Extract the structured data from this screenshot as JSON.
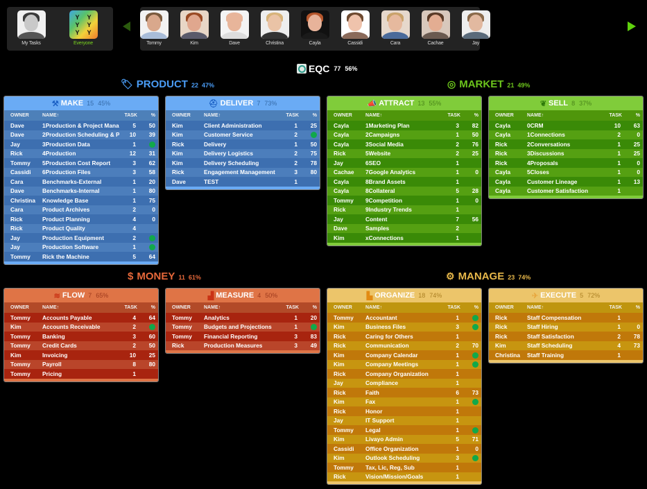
{
  "top_bar": {
    "self_users": [
      {
        "name": "My Tasks",
        "active": false,
        "skin": "#c9c9c9",
        "hair": "#3a3a3a",
        "bg": "#f0f0f0",
        "shirt": "#555"
      },
      {
        "name": "Everyone",
        "active": true,
        "icon": "everyone-icon"
      }
    ],
    "team_users": [
      {
        "name": "Tommy",
        "skin": "#d9a88c",
        "hair": "#7a5a3e",
        "bg": "#f2f2f2",
        "shirt": "#a8bcd8"
      },
      {
        "name": "Kim",
        "skin": "#e0a78e",
        "hair": "#9a4a24",
        "bg": "#e8d6c6",
        "shirt": "#5a5a6a"
      },
      {
        "name": "Dave",
        "skin": "#e8b59a",
        "hair": "#e8b59a",
        "bg": "#f4f4f4",
        "shirt": "#dddddd"
      },
      {
        "name": "Christina",
        "skin": "#eac3a6",
        "hair": "#d7b37a",
        "bg": "#eeeeee",
        "shirt": "#333"
      },
      {
        "name": "Cayla",
        "skin": "#e7b39a",
        "hair": "#b5562c",
        "bg": "#111111",
        "shirt": "#1a1a1a"
      },
      {
        "name": "Cassidi",
        "skin": "#efc3ac",
        "hair": "#6e4a30",
        "bg": "#ffffff",
        "shirt": "#8a6a5a"
      },
      {
        "name": "Cara",
        "skin": "#e6b99e",
        "hair": "#c9a26a",
        "bg": "#e6d8cc",
        "shirt": "#4a6a9a"
      },
      {
        "name": "Cachae",
        "skin": "#e3ad92",
        "hair": "#5a3a26",
        "bg": "#d8c8bc",
        "shirt": "#6a5a50"
      },
      {
        "name": "Jay",
        "skin": "#e2b9a0",
        "hair": "#8a6a4a",
        "bg": "#eeeeee",
        "shirt": "#5a6a7a"
      }
    ],
    "prev_arrow": "triangle-left-icon",
    "next_arrow": "triangle-right-icon"
  },
  "eqc": {
    "label": "EQC",
    "count": "77",
    "pct": "56%"
  },
  "sections": {
    "product": {
      "label": "PRODUCT",
      "count": "22",
      "pct": "47%",
      "color": "#4a9cf5",
      "icon": "🏷"
    },
    "market": {
      "label": "MARKET",
      "count": "21",
      "pct": "49%",
      "color": "#6cc41c",
      "icon": "🎯"
    },
    "money": {
      "label": "MONEY",
      "count": "11",
      "pct": "61%",
      "color": "#e6683a",
      "icon": "$"
    },
    "manage": {
      "label": "MANAGE",
      "count": "23",
      "pct": "74%",
      "color": "#e8b84a",
      "icon": "⚙"
    }
  },
  "columns": {
    "owner": "OWNER",
    "name": "NAME↑",
    "task": "TASK",
    "pct": "%"
  },
  "panels": {
    "make": {
      "label": "MAKE",
      "count": "15",
      "pct": "45%",
      "icon": "⚒",
      "rows": [
        [
          "Dave",
          "1Production & Project Management",
          "5",
          "50"
        ],
        [
          "Dave",
          "2Production Scheduling & Planning",
          "10",
          "39"
        ],
        [
          "Jay",
          "3Production Data",
          "1",
          "dot"
        ],
        [
          "Rick",
          "4Production",
          "12",
          "31"
        ],
        [
          "Tommy",
          "5Production Cost Report",
          "3",
          "62"
        ],
        [
          "Cassidi",
          "6Production Files",
          "3",
          "58"
        ],
        [
          "Cara",
          "Benchmarks-External",
          "1",
          "20"
        ],
        [
          "Dave",
          "Benchmarks-Internal",
          "1",
          "80"
        ],
        [
          "Christina",
          "Knowledge Base",
          "1",
          "75"
        ],
        [
          "Cara",
          "Product Archives",
          "2",
          "0"
        ],
        [
          "Rick",
          "Product Planning",
          "4",
          "0"
        ],
        [
          "Rick",
          "Product Quality",
          "4",
          ""
        ],
        [
          "Jay",
          "Production Equipment",
          "2",
          "dot"
        ],
        [
          "Jay",
          "Production Software",
          "1",
          "dot"
        ],
        [
          "Tommy",
          "Rick the Machine",
          "5",
          "64"
        ]
      ]
    },
    "deliver": {
      "label": "DELIVER",
      "count": "7",
      "pct": "73%",
      "icon": "🛡",
      "rows": [
        [
          "Kim",
          "Client Administration",
          "1",
          "25"
        ],
        [
          "Kim",
          "Customer Service",
          "2",
          "dot"
        ],
        [
          "Rick",
          "Delivery",
          "1",
          "50"
        ],
        [
          "Kim",
          "Delivery Logistics",
          "2",
          "75"
        ],
        [
          "Kim",
          "Delivery Scheduling",
          "2",
          "78"
        ],
        [
          "Rick",
          "Engagement Management",
          "3",
          "80"
        ],
        [
          "Dave",
          "TEST",
          "1",
          ""
        ]
      ]
    },
    "attract": {
      "label": "ATTRACT",
      "count": "13",
      "pct": "55%",
      "icon": "📣",
      "rows": [
        [
          "Cayla",
          "1Marketing Plan",
          "3",
          "82"
        ],
        [
          "Cayla",
          "2Campaigns",
          "1",
          "50"
        ],
        [
          "Cayla",
          "3Social Media",
          "2",
          "76"
        ],
        [
          "Rick",
          "5Website",
          "2",
          "25"
        ],
        [
          "Jay",
          "6SEO",
          "1",
          ""
        ],
        [
          "Cachae",
          "7Google Analytics",
          "1",
          "0"
        ],
        [
          "Cayla",
          "8Brand Assets",
          "1",
          ""
        ],
        [
          "Cayla",
          "8Collateral",
          "5",
          "28"
        ],
        [
          "Tommy",
          "9Competition",
          "1",
          "0"
        ],
        [
          "Rick",
          "9Industry Trends",
          "1",
          ""
        ],
        [
          "Jay",
          "Content",
          "7",
          "56"
        ],
        [
          "Dave",
          "Samples",
          "2",
          ""
        ],
        [
          "Kim",
          "xConnections",
          "1",
          ""
        ]
      ]
    },
    "sell": {
      "label": "SELL",
      "count": "8",
      "pct": "37%",
      "icon": "🤝",
      "rows": [
        [
          "Cayla",
          "0CRM",
          "10",
          "63"
        ],
        [
          "Cayla",
          "1Connections",
          "2",
          "0"
        ],
        [
          "Rick",
          "2Conversations",
          "1",
          "25"
        ],
        [
          "Rick",
          "3Discussions",
          "1",
          "25"
        ],
        [
          "Rick",
          "4Proposals",
          "1",
          "0"
        ],
        [
          "Cayla",
          "5Closes",
          "1",
          "0"
        ],
        [
          "Cayla",
          "Customer Lineage",
          "1",
          "13"
        ],
        [
          "Cayla",
          "Customer Satisfaction",
          "1",
          ""
        ]
      ]
    },
    "flow": {
      "label": "FLOW",
      "count": "7",
      "pct": "65%",
      "icon": "≋",
      "rows": [
        [
          "Tommy",
          "Accounts Payable",
          "4",
          "64"
        ],
        [
          "Kim",
          "Accounts Receivable",
          "2",
          "dot"
        ],
        [
          "Tommy",
          "Banking",
          "3",
          "60"
        ],
        [
          "Tommy",
          "Credit Cards",
          "2",
          "50"
        ],
        [
          "Kim",
          "Invoicing",
          "10",
          "25"
        ],
        [
          "Tommy",
          "Payroll",
          "8",
          "80"
        ],
        [
          "Tommy",
          "Pricing",
          "1",
          ""
        ]
      ]
    },
    "measure": {
      "label": "MEASURE",
      "count": "4",
      "pct": "50%",
      "icon": "📊",
      "rows": [
        [
          "Tommy",
          "Analytics",
          "1",
          "20"
        ],
        [
          "Tommy",
          "Budgets and Projections",
          "1",
          "dot"
        ],
        [
          "Tommy",
          "Financial Reporting",
          "3",
          "83"
        ],
        [
          "Rick",
          "Production Measures",
          "3",
          "49"
        ]
      ]
    },
    "organize": {
      "label": "ORGANIZE",
      "count": "18",
      "pct": "74%",
      "icon": "品",
      "rows": [
        [
          "Tommy",
          "Accountant",
          "1",
          "dot"
        ],
        [
          "Kim",
          "Business Files",
          "3",
          "dot"
        ],
        [
          "Rick",
          "Caring for Others",
          "1",
          ""
        ],
        [
          "Rick",
          "Communication",
          "2",
          "70"
        ],
        [
          "Kim",
          "Company Calendar",
          "1",
          "dot"
        ],
        [
          "Kim",
          "Company Meetings",
          "1",
          "dot"
        ],
        [
          "Rick",
          "Company Organization",
          "1",
          ""
        ],
        [
          "Jay",
          "Compliance",
          "1",
          ""
        ],
        [
          "Rick",
          "Faith",
          "6",
          "73"
        ],
        [
          "Kim",
          "Fax",
          "1",
          "dot"
        ],
        [
          "Rick",
          "Honor",
          "1",
          ""
        ],
        [
          "Jay",
          "IT Support",
          "1",
          ""
        ],
        [
          "Tommy",
          "Legal",
          "1",
          "dot"
        ],
        [
          "Kim",
          "Livayo Admin",
          "5",
          "71"
        ],
        [
          "Cassidi",
          "Office Organization",
          "1",
          "0"
        ],
        [
          "Kim",
          "Outlook Scheduling",
          "3",
          "dot"
        ],
        [
          "Tommy",
          "Tax, Lic, Reg, Sub",
          "1",
          ""
        ],
        [
          "Rick",
          "Vision/Mission/Goals",
          "1",
          ""
        ]
      ]
    },
    "execute": {
      "label": "EXECUTE",
      "count": "5",
      "pct": "72%",
      "icon": "🏃",
      "rows": [
        [
          "Rick",
          "Staff Compensation",
          "1",
          ""
        ],
        [
          "Rick",
          "Staff Hiring",
          "1",
          "0"
        ],
        [
          "Rick",
          "Staff Satisfaction",
          "2",
          "78"
        ],
        [
          "Kim",
          "Staff Scheduling",
          "4",
          "73"
        ],
        [
          "Christina",
          "Staff Training",
          "1",
          ""
        ]
      ]
    }
  }
}
